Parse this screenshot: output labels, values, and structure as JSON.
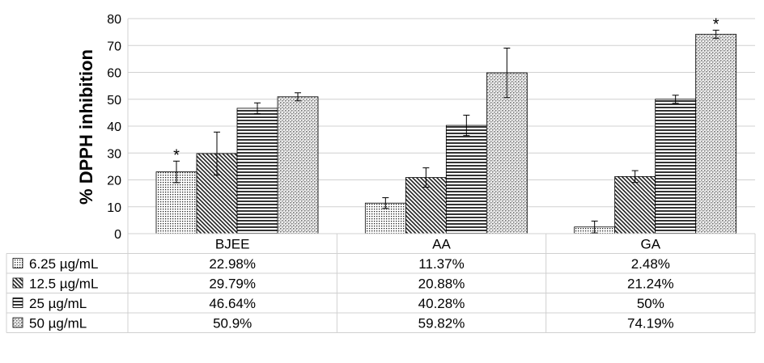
{
  "chart_data": {
    "type": "bar",
    "title": "",
    "xlabel": "",
    "ylabel": "% DPPH inhibition",
    "ylim": [
      0,
      80
    ],
    "yticks": [
      0,
      10,
      20,
      30,
      40,
      50,
      60,
      70,
      80
    ],
    "grid": true,
    "legend": "data-table",
    "categories": [
      "BJEE",
      "AA",
      "GA"
    ],
    "series": [
      {
        "name": "6.25 µg/mL",
        "pattern": "dots",
        "values": [
          22.98,
          11.37,
          2.48
        ],
        "labels": [
          "22.98%",
          "11.37%",
          "2.48%"
        ],
        "errors": [
          4.0,
          2.0,
          2.2
        ],
        "significant": [
          true,
          false,
          false
        ]
      },
      {
        "name": "12.5 µg/mL",
        "pattern": "diagonal",
        "values": [
          29.79,
          20.88,
          21.24
        ],
        "labels": [
          "29.79%",
          "20.88%",
          "21.24%"
        ],
        "errors": [
          8.0,
          3.6,
          2.2
        ],
        "significant": [
          false,
          false,
          false
        ]
      },
      {
        "name": "25 µg/mL",
        "pattern": "horizontal",
        "values": [
          46.64,
          40.28,
          50
        ],
        "labels": [
          "46.64%",
          "40.28%",
          "50%"
        ],
        "errors": [
          2.0,
          3.8,
          1.5
        ],
        "significant": [
          false,
          false,
          false
        ]
      },
      {
        "name": "50 µg/mL",
        "pattern": "checker",
        "values": [
          50.9,
          59.82,
          74.19
        ],
        "labels": [
          "50.9%",
          "59.82%",
          "74.19%"
        ],
        "errors": [
          1.5,
          9.2,
          1.5
        ],
        "significant": [
          false,
          false,
          true
        ]
      }
    ],
    "significance_mark": "*"
  }
}
